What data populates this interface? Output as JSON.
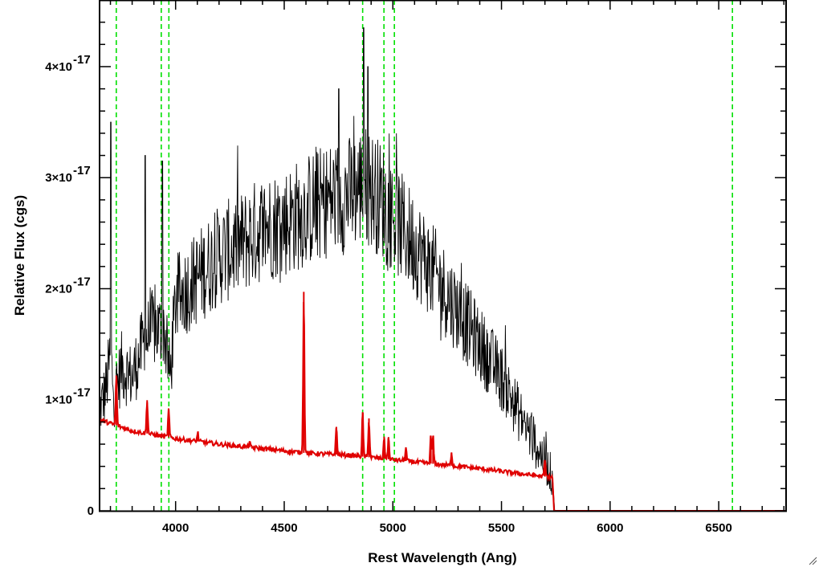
{
  "chart_data": {
    "type": "line",
    "title": "",
    "xlabel": "Rest Wavelength (Ang)",
    "ylabel": "Relative Flux (cgs)",
    "xlim": [
      3650,
      6810
    ],
    "ylim": [
      0,
      4.6e-17
    ],
    "x_ticks": [
      {
        "value": 4000,
        "label": "4000"
      },
      {
        "value": 4500,
        "label": "4500"
      },
      {
        "value": 5000,
        "label": "5000"
      },
      {
        "value": 5500,
        "label": "5500"
      },
      {
        "value": 6000,
        "label": "6000"
      },
      {
        "value": 6500,
        "label": "6500"
      }
    ],
    "y_ticks": [
      {
        "value": 0,
        "label": "0",
        "exp": ""
      },
      {
        "value": 1e-17,
        "label": "1×10",
        "exp": "-17"
      },
      {
        "value": 2e-17,
        "label": "2×10",
        "exp": "-17"
      },
      {
        "value": 3e-17,
        "label": "3×10",
        "exp": "-17"
      },
      {
        "value": 4e-17,
        "label": "4×10",
        "exp": "-17"
      }
    ],
    "grid": false,
    "legend": "none",
    "vertical_lines": {
      "color": "#00e000",
      "style": "dashed",
      "x": [
        3727,
        3934,
        3969,
        4861,
        4959,
        5007,
        6563
      ]
    },
    "series": [
      {
        "color": "#000000",
        "line": "observed spectrum",
        "points": [
          [
            3650,
            9e-18
          ],
          [
            3680,
            1.1e-17
          ],
          [
            3700,
            1.4e-17
          ],
          [
            3720,
            1e-17
          ],
          [
            3750,
            1.3e-17
          ],
          [
            3800,
            1.2e-17
          ],
          [
            3850,
            1.5e-17
          ],
          [
            3900,
            1.65e-17
          ],
          [
            3950,
            1.6e-17
          ],
          [
            3975,
            1.2e-17
          ],
          [
            4000,
            1.9e-17
          ],
          [
            4100,
            2.1e-17
          ],
          [
            4200,
            2.3e-17
          ],
          [
            4300,
            2.4e-17
          ],
          [
            4400,
            2.55e-17
          ],
          [
            4500,
            2.6e-17
          ],
          [
            4600,
            2.7e-17
          ],
          [
            4700,
            2.8e-17
          ],
          [
            4800,
            2.85e-17
          ],
          [
            4870,
            2.95e-17
          ],
          [
            4950,
            2.8e-17
          ],
          [
            5000,
            2.65e-17
          ],
          [
            5100,
            2.4e-17
          ],
          [
            5200,
            2.1e-17
          ],
          [
            5300,
            1.8e-17
          ],
          [
            5400,
            1.5e-17
          ],
          [
            5500,
            1.2e-17
          ],
          [
            5600,
            8e-18
          ],
          [
            5700,
            4.5e-18
          ],
          [
            5735,
            3e-18
          ],
          [
            5745,
            0
          ]
        ],
        "noise_amplitude": 3.5e-18,
        "peaks": [
          [
            3702,
            3.5e-17
          ],
          [
            3860,
            3.2e-17
          ],
          [
            3940,
            3.15e-17
          ],
          [
            4750,
            3.8e-17
          ],
          [
            4865,
            4.35e-17
          ],
          [
            4885,
            4e-17
          ]
        ]
      },
      {
        "color": "#e00000",
        "line": "model spectrum",
        "points": [
          [
            3650,
            8.2e-18
          ],
          [
            3800,
            7.2e-18
          ],
          [
            4000,
            6.5e-18
          ],
          [
            4200,
            6e-18
          ],
          [
            4400,
            5.6e-18
          ],
          [
            4600,
            5.2e-18
          ],
          [
            4800,
            5e-18
          ],
          [
            5000,
            4.6e-18
          ],
          [
            5200,
            4.2e-18
          ],
          [
            5400,
            3.8e-18
          ],
          [
            5600,
            3.3e-18
          ],
          [
            5735,
            3e-18
          ],
          [
            5742,
            0
          ],
          [
            6810,
            0
          ]
        ],
        "emission_lines": [
          [
            3727,
            4.5e-18
          ],
          [
            3869,
            3e-18
          ],
          [
            3968,
            2.5e-18
          ],
          [
            4102,
            8e-19
          ],
          [
            4340,
            5e-19
          ],
          [
            4590,
            1.45e-17
          ],
          [
            4740,
            2.5e-18
          ],
          [
            4861,
            4e-18
          ],
          [
            4890,
            3.5e-18
          ],
          [
            4960,
            2e-18
          ],
          [
            4980,
            2e-18
          ],
          [
            5060,
            1.2e-18
          ],
          [
            5175,
            2.5e-18
          ],
          [
            5185,
            2.5e-18
          ],
          [
            5270,
            1.2e-18
          ],
          [
            5700,
            1.5e-18
          ]
        ]
      }
    ]
  }
}
